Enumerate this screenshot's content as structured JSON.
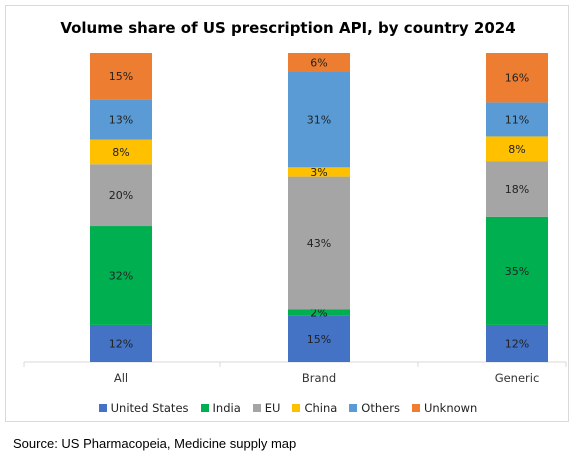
{
  "title": "Volume share of US prescription API, by country 2024",
  "source": "Source: US Pharmacopeia, Medicine supply map",
  "chart_data": {
    "type": "bar",
    "stacked": true,
    "orientation": "vertical",
    "categories": [
      "All",
      "Brand",
      "Generic"
    ],
    "series": [
      {
        "name": "United States",
        "color": "#4472C4",
        "values": [
          12,
          15,
          12
        ]
      },
      {
        "name": "India",
        "color": "#00B050",
        "values": [
          32,
          2,
          35
        ]
      },
      {
        "name": "EU",
        "color": "#A5A5A5",
        "values": [
          20,
          43,
          18
        ]
      },
      {
        "name": "China",
        "color": "#FFC000",
        "values": [
          8,
          3,
          8
        ]
      },
      {
        "name": "Others",
        "color": "#5B9BD5",
        "values": [
          13,
          31,
          11
        ]
      },
      {
        "name": "Unknown",
        "color": "#ED7D31",
        "values": [
          15,
          6,
          16
        ]
      }
    ],
    "value_suffix": "%",
    "legend_position": "bottom",
    "grid": false
  }
}
